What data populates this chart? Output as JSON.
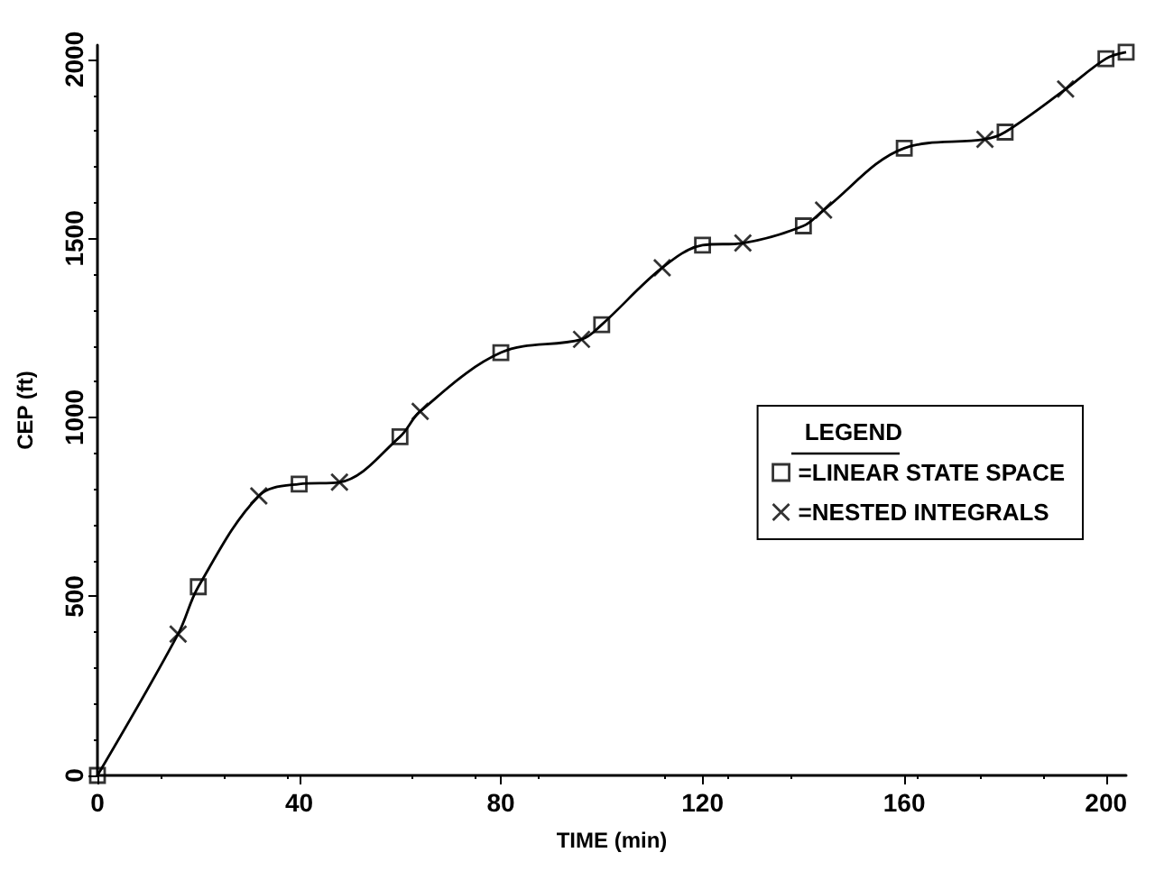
{
  "chart_data": {
    "type": "line",
    "xlabel": "TIME (min)",
    "ylabel": "CEP (ft)",
    "legend_title": "LEGEND",
    "xlim": [
      0,
      204
    ],
    "xticks": [
      0,
      40,
      80,
      120,
      160,
      200
    ],
    "ylim": [
      0,
      2040
    ],
    "yticks": [
      0,
      500,
      1000,
      1500,
      2000
    ],
    "grid": false,
    "legend": "right",
    "series": [
      {
        "marker": "none",
        "color": "#000000",
        "x": [
          0,
          16,
          20,
          32,
          40,
          48,
          60,
          64,
          80,
          96,
          100,
          112,
          120,
          128,
          140,
          144,
          160,
          176,
          180,
          192,
          200,
          204
        ],
        "values": [
          0,
          395,
          527,
          781,
          814,
          819,
          946,
          1017,
          1181,
          1218,
          1259,
          1418,
          1481,
          1487,
          1535,
          1579,
          1752,
          1777,
          1797,
          1917,
          2002,
          2020
        ]
      },
      {
        "type": "scatter",
        "name": "=LINEAR STATE SPACE",
        "marker": "square",
        "color": "#000000",
        "x": [
          0,
          20,
          40,
          60,
          80,
          100,
          120,
          140,
          160,
          180,
          200,
          204
        ],
        "values": [
          0,
          527,
          814,
          946,
          1181,
          1259,
          1481,
          1535,
          1752,
          1797,
          2002,
          2020
        ]
      },
      {
        "type": "scatter",
        "name": "=NESTED INTEGRALS",
        "marker": "cross",
        "color": "#000000",
        "x": [
          16,
          32,
          48,
          64,
          96,
          112,
          128,
          144,
          176,
          192
        ],
        "values": [
          395,
          781,
          819,
          1017,
          1218,
          1418,
          1487,
          1579,
          1777,
          1917
        ]
      }
    ]
  }
}
